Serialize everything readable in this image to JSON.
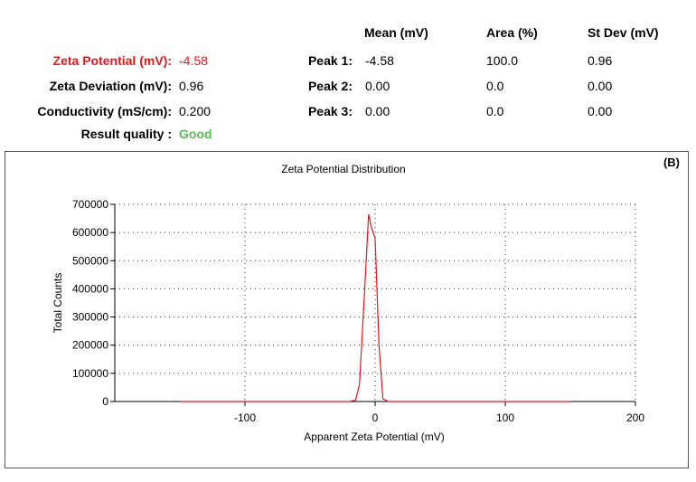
{
  "summary": {
    "zeta_potential": {
      "label": "Zeta Potential (mV):",
      "value": "-4.58"
    },
    "zeta_deviation": {
      "label": "Zeta Deviation (mV):",
      "value": "0.96"
    },
    "conductivity": {
      "label": "Conductivity (mS/cm):",
      "value": "0.200"
    },
    "result_quality": {
      "label": "Result quality :",
      "value": "Good"
    }
  },
  "peaks": {
    "headers": {
      "mean": "Mean (mV)",
      "area": "Area (%)",
      "stdev": "St Dev (mV)"
    },
    "rows": [
      {
        "label": "Peak 1:",
        "mean": "-4.58",
        "area": "100.0",
        "stdev": "0.96"
      },
      {
        "label": "Peak 2:",
        "mean": "0.00",
        "area": "0.0",
        "stdev": "0.00"
      },
      {
        "label": "Peak 3:",
        "mean": "0.00",
        "area": "0.0",
        "stdev": "0.00"
      }
    ]
  },
  "colors": {
    "accent_red": "#e8151b",
    "good_green": "#5cb85c",
    "line": "#e8151b"
  },
  "panel_label": "(B)",
  "chart_data": {
    "type": "line",
    "title": "Zeta Potential Distribution",
    "xlabel": "Apparent Zeta Potential (mV)",
    "ylabel": "Total Counts",
    "xlim": [
      -200,
      200
    ],
    "ylim": [
      0,
      700000
    ],
    "xticks": [
      -100,
      0,
      100,
      200
    ],
    "yticks": [
      0,
      100000,
      200000,
      300000,
      400000,
      500000,
      600000,
      700000
    ],
    "grid": true,
    "series": [
      {
        "x": [
          -150,
          -100,
          -50,
          -20,
          -15,
          -12,
          -8,
          -5,
          -3,
          0,
          3,
          6,
          10,
          50,
          100,
          150
        ],
        "y": [
          0,
          0,
          0,
          0,
          5000,
          60000,
          400000,
          665000,
          620000,
          580000,
          200000,
          10000,
          0,
          0,
          0,
          0
        ]
      }
    ]
  }
}
